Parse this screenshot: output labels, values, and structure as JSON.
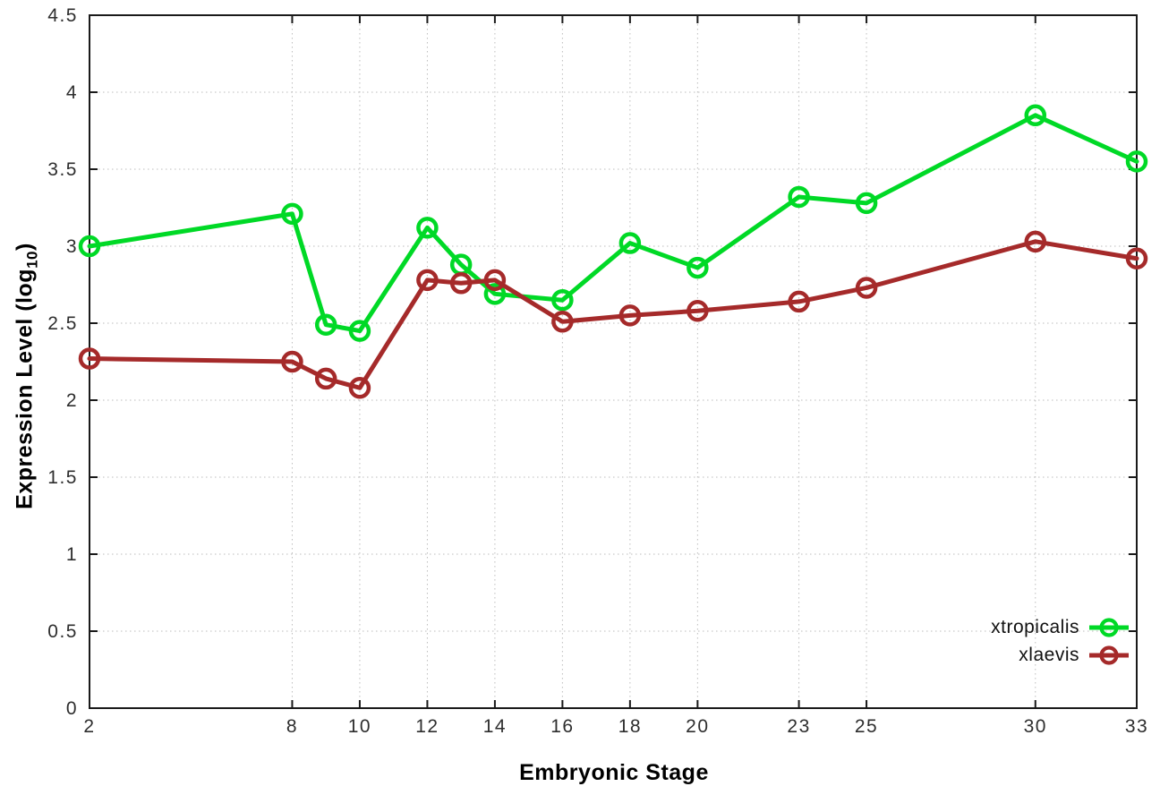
{
  "chart_data": {
    "type": "line",
    "title": "",
    "xlabel": "Embryonic Stage",
    "ylabel": {
      "main": "Expression Level (log",
      "sub": "10",
      "end": ")"
    },
    "x": [
      2,
      8,
      9,
      10,
      12,
      13,
      14,
      16,
      18,
      20,
      23,
      25,
      30,
      33
    ],
    "series": [
      {
        "name": "xtropicalis",
        "color": "#00d926",
        "values": [
          3.0,
          3.21,
          2.49,
          2.45,
          3.12,
          2.88,
          2.69,
          2.65,
          3.02,
          2.86,
          3.32,
          3.28,
          3.85,
          3.55
        ]
      },
      {
        "name": "xlaevis",
        "color": "#a52a2a",
        "values": [
          2.27,
          2.25,
          2.14,
          2.08,
          2.78,
          2.76,
          2.78,
          2.51,
          2.55,
          2.58,
          2.64,
          2.73,
          3.03,
          2.92
        ]
      }
    ],
    "x_ticks": [
      2,
      8,
      10,
      12,
      14,
      16,
      18,
      20,
      23,
      25,
      30,
      33
    ],
    "y_ticks": [
      0,
      0.5,
      1,
      1.5,
      2,
      2.5,
      3,
      3.5,
      4,
      4.5
    ],
    "xlim": [
      2,
      33
    ],
    "ylim": [
      0,
      4.5
    ],
    "grid": true,
    "legend_position": "bottom-right",
    "marker": "open-circle"
  },
  "styles": {
    "background": "#ffffff",
    "axis_color": "#1a1a1a",
    "grid_color": "#bdbdbd",
    "tick_label_color": "#2e2e2e"
  }
}
